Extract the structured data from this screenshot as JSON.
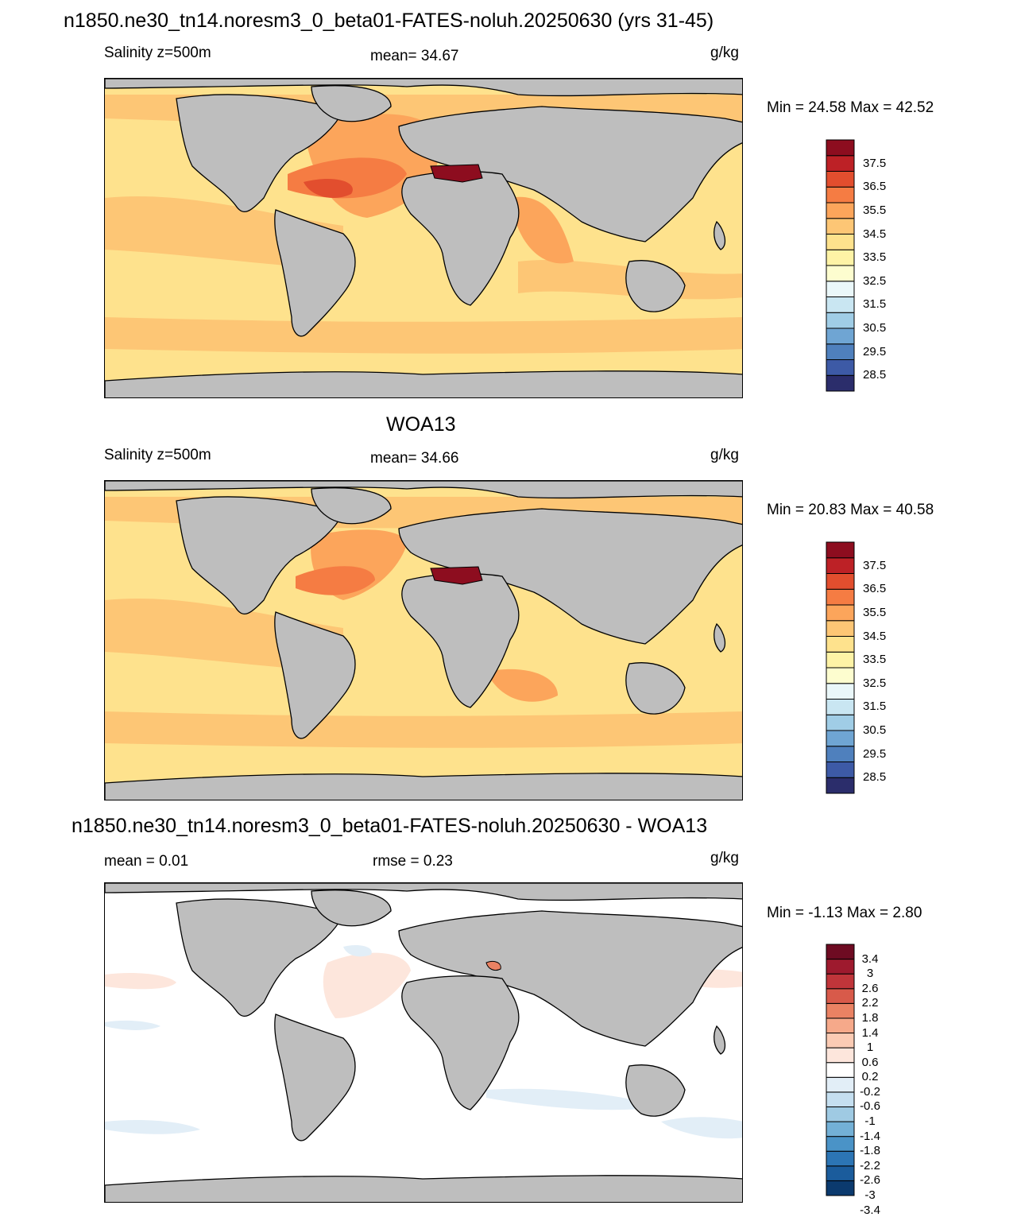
{
  "panels": [
    {
      "title": "n1850.ne30_tn14.noresm3_0_beta01-FATES-noluh.20250630 (yrs 31-45)",
      "left_label": "Salinity z=500m",
      "center_label": "mean=  34.67",
      "units": "g/kg",
      "minmax": "Min =  24.58 Max =  42.52",
      "colorbar": {
        "colors": [
          "#2b2d6b",
          "#3d5aa6",
          "#4f80bd",
          "#6fa5d3",
          "#a0cde6",
          "#c9e6f2",
          "#eaf7f9",
          "#fdfdcf",
          "#fef3a6",
          "#fee28d",
          "#fdc675",
          "#fca55b",
          "#f57c43",
          "#e24e2e",
          "#bd2126",
          "#8d0d1f"
        ],
        "labels": [
          "37.5",
          "36.5",
          "35.5",
          "34.5",
          "33.5",
          "32.5",
          "31.5",
          "30.5",
          "29.5",
          "28.5"
        ]
      }
    },
    {
      "title": "WOA13",
      "left_label": "Salinity z=500m",
      "center_label": "mean=  34.66",
      "units": "g/kg",
      "minmax": "Min =  20.83 Max =  40.58",
      "colorbar": {
        "colors": [
          "#2b2d6b",
          "#3d5aa6",
          "#4f80bd",
          "#6fa5d3",
          "#a0cde6",
          "#c9e6f2",
          "#eaf7f9",
          "#fdfdcf",
          "#fef3a6",
          "#fee28d",
          "#fdc675",
          "#fca55b",
          "#f57c43",
          "#e24e2e",
          "#bd2126",
          "#8d0d1f"
        ],
        "labels": [
          "37.5",
          "36.5",
          "35.5",
          "34.5",
          "33.5",
          "32.5",
          "31.5",
          "30.5",
          "29.5",
          "28.5"
        ]
      }
    },
    {
      "title": "n1850.ne30_tn14.noresm3_0_beta01-FATES-noluh.20250630 - WOA13",
      "left_label": "mean =   0.01",
      "center_label": "rmse =   0.23",
      "units": "g/kg",
      "minmax": "Min =  -1.13 Max =   2.80",
      "colorbar": {
        "colors": [
          "#0b3a6e",
          "#1b5c9c",
          "#2c75b5",
          "#4a93c7",
          "#73b0d6",
          "#9fcae3",
          "#c5dff0",
          "#e2eef7",
          "#ffffff",
          "#fde6dc",
          "#fbcbb4",
          "#f6a98a",
          "#ea8263",
          "#d85a4a",
          "#c0353a",
          "#9e1a2e",
          "#6e0b22"
        ],
        "labels": [
          "3.4",
          "3",
          "2.6",
          "2.2",
          "1.8",
          "1.4",
          "1",
          "0.6",
          "0.2",
          "-0.2",
          "-0.6",
          "-1",
          "-1.4",
          "-1.8",
          "-2.2",
          "-2.6",
          "-3",
          "-3.4"
        ]
      }
    }
  ]
}
